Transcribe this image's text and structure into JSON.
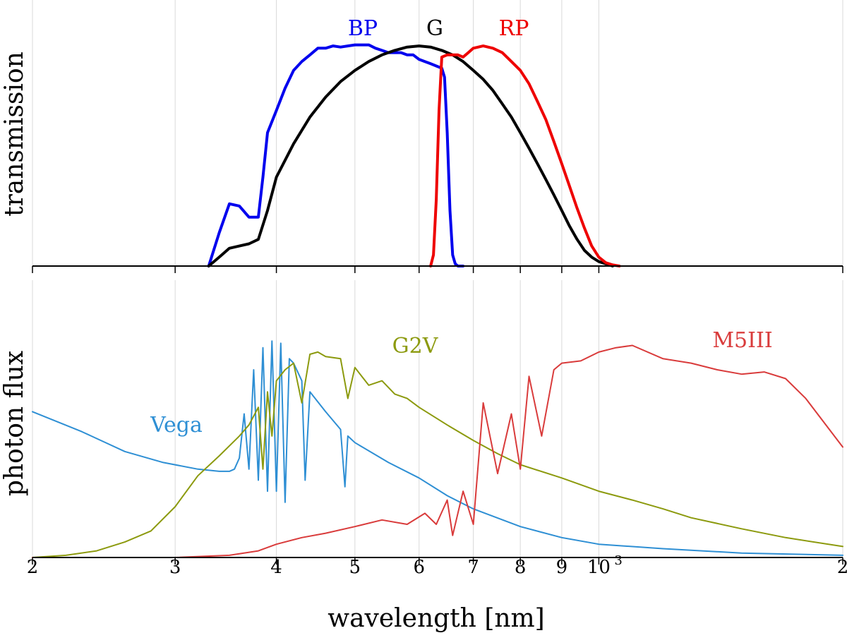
{
  "chart_data": [
    {
      "type": "line",
      "panel": "transmission",
      "xlabel": "",
      "ylabel": "transmission",
      "xscale": "log",
      "xlim": [
        200,
        2000
      ],
      "ylim": [
        0,
        1.0
      ],
      "series": [
        {
          "name": "BP",
          "color": "#0000ee",
          "x": [
            330,
            340,
            350,
            360,
            370,
            380,
            385,
            390,
            400,
            410,
            420,
            430,
            440,
            450,
            460,
            470,
            480,
            490,
            500,
            510,
            520,
            530,
            540,
            550,
            560,
            570,
            580,
            590,
            600,
            610,
            620,
            630,
            640,
            645,
            650,
            655,
            660,
            665,
            670,
            680
          ],
          "y": [
            0.0,
            0.15,
            0.28,
            0.27,
            0.22,
            0.22,
            0.4,
            0.6,
            0.7,
            0.8,
            0.88,
            0.92,
            0.95,
            0.98,
            0.98,
            0.99,
            0.985,
            0.99,
            0.995,
            0.995,
            0.995,
            0.98,
            0.97,
            0.96,
            0.96,
            0.96,
            0.95,
            0.95,
            0.93,
            0.92,
            0.91,
            0.9,
            0.89,
            0.85,
            0.6,
            0.25,
            0.05,
            0.01,
            0.0,
            0.0
          ]
        },
        {
          "name": "G",
          "color": "#000000",
          "x": [
            330,
            340,
            350,
            360,
            370,
            380,
            390,
            400,
            420,
            440,
            460,
            480,
            500,
            520,
            540,
            560,
            580,
            600,
            620,
            640,
            660,
            680,
            700,
            720,
            740,
            760,
            780,
            800,
            820,
            840,
            860,
            880,
            900,
            920,
            940,
            960,
            980,
            1000,
            1020,
            1040
          ],
          "y": [
            0.0,
            0.04,
            0.08,
            0.09,
            0.1,
            0.12,
            0.25,
            0.4,
            0.55,
            0.67,
            0.76,
            0.83,
            0.88,
            0.92,
            0.95,
            0.97,
            0.985,
            0.99,
            0.985,
            0.97,
            0.95,
            0.92,
            0.88,
            0.84,
            0.79,
            0.73,
            0.67,
            0.6,
            0.53,
            0.46,
            0.39,
            0.32,
            0.25,
            0.18,
            0.12,
            0.07,
            0.04,
            0.02,
            0.01,
            0.0
          ]
        },
        {
          "name": "RP",
          "color": "#ee0000",
          "x": [
            620,
            625,
            630,
            635,
            640,
            650,
            660,
            670,
            680,
            690,
            700,
            720,
            740,
            760,
            780,
            800,
            820,
            840,
            860,
            880,
            900,
            920,
            940,
            960,
            980,
            1000,
            1020,
            1040,
            1060
          ],
          "y": [
            0.0,
            0.05,
            0.3,
            0.7,
            0.94,
            0.95,
            0.95,
            0.95,
            0.94,
            0.96,
            0.98,
            0.99,
            0.98,
            0.96,
            0.92,
            0.88,
            0.82,
            0.74,
            0.66,
            0.56,
            0.46,
            0.36,
            0.26,
            0.17,
            0.09,
            0.04,
            0.015,
            0.005,
            0.0
          ]
        }
      ]
    },
    {
      "type": "line",
      "panel": "spectra",
      "xlabel": "wavelength [nm]",
      "ylabel": "photon flux",
      "xscale": "log",
      "xlim": [
        200,
        2000
      ],
      "ylim": [
        0,
        1.0
      ],
      "series": [
        {
          "name": "Vega",
          "color": "#2e8fd4",
          "x": [
            200,
            230,
            260,
            290,
            320,
            340,
            350,
            355,
            360,
            365,
            370,
            375,
            380,
            385,
            390,
            395,
            400,
            405,
            410,
            415,
            420,
            430,
            434,
            440,
            460,
            480,
            486,
            490,
            500,
            550,
            600,
            650,
            700,
            800,
            900,
            1000,
            1200,
            1500,
            2000
          ],
          "y": [
            0.66,
            0.57,
            0.48,
            0.43,
            0.4,
            0.39,
            0.39,
            0.4,
            0.45,
            0.65,
            0.4,
            0.85,
            0.35,
            0.95,
            0.3,
            0.98,
            0.3,
            0.97,
            0.25,
            0.9,
            0.88,
            0.8,
            0.35,
            0.75,
            0.66,
            0.58,
            0.32,
            0.55,
            0.52,
            0.43,
            0.36,
            0.28,
            0.22,
            0.14,
            0.09,
            0.06,
            0.04,
            0.02,
            0.01
          ]
        },
        {
          "name": "G2V",
          "color": "#8c9a0e",
          "x": [
            200,
            220,
            240,
            260,
            280,
            300,
            320,
            340,
            360,
            370,
            380,
            385,
            390,
            395,
            400,
            410,
            420,
            430,
            440,
            450,
            460,
            480,
            490,
            500,
            520,
            540,
            560,
            580,
            600,
            650,
            700,
            750,
            800,
            900,
            1000,
            1100,
            1200,
            1300,
            1500,
            1700,
            2000
          ],
          "y": [
            0.0,
            0.01,
            0.03,
            0.07,
            0.12,
            0.23,
            0.37,
            0.46,
            0.55,
            0.6,
            0.68,
            0.4,
            0.75,
            0.55,
            0.8,
            0.85,
            0.88,
            0.7,
            0.92,
            0.93,
            0.91,
            0.9,
            0.72,
            0.86,
            0.78,
            0.8,
            0.74,
            0.72,
            0.68,
            0.6,
            0.53,
            0.47,
            0.42,
            0.36,
            0.3,
            0.26,
            0.22,
            0.18,
            0.13,
            0.09,
            0.05
          ]
        },
        {
          "name": "M5III",
          "color": "#d93b3b",
          "x": [
            200,
            300,
            350,
            380,
            400,
            430,
            460,
            500,
            540,
            580,
            610,
            630,
            650,
            660,
            680,
            700,
            720,
            750,
            780,
            800,
            820,
            850,
            880,
            900,
            950,
            1000,
            1050,
            1100,
            1200,
            1300,
            1400,
            1500,
            1600,
            1700,
            1800,
            2000
          ],
          "y": [
            0.0,
            0.0,
            0.01,
            0.03,
            0.06,
            0.09,
            0.11,
            0.14,
            0.17,
            0.15,
            0.2,
            0.15,
            0.26,
            0.1,
            0.3,
            0.15,
            0.7,
            0.38,
            0.65,
            0.4,
            0.82,
            0.55,
            0.85,
            0.88,
            0.89,
            0.93,
            0.95,
            0.96,
            0.9,
            0.88,
            0.85,
            0.83,
            0.84,
            0.81,
            0.72,
            0.5
          ]
        }
      ]
    }
  ],
  "axis": {
    "x_ticks": [
      {
        "value": 200,
        "label": "2"
      },
      {
        "value": 300,
        "label": "3"
      },
      {
        "value": 400,
        "label": "4"
      },
      {
        "value": 500,
        "label": "5"
      },
      {
        "value": 600,
        "label": "6"
      },
      {
        "value": 700,
        "label": "7"
      },
      {
        "value": 800,
        "label": "8"
      },
      {
        "value": 900,
        "label": "9"
      },
      {
        "value": 1000,
        "label": "10"
      },
      {
        "value": 2000,
        "label": "2"
      }
    ],
    "x_exp_label": "3"
  },
  "labels": {
    "top_ylabel": "transmission",
    "bottom_ylabel": "photon flux",
    "xlabel": "wavelength [nm]",
    "bp": "BP",
    "g": "G",
    "rp": "RP",
    "vega": "Vega",
    "g2v": "G2V",
    "m5iii": "M5III"
  }
}
